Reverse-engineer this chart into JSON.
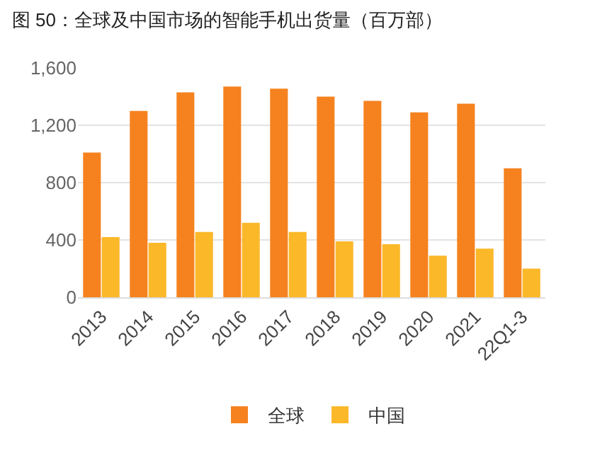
{
  "chart_data": {
    "type": "bar",
    "title": "图 50：全球及中国市场的智能手机出货量（百万部）",
    "categories": [
      "2013",
      "2014",
      "2015",
      "2016",
      "2017",
      "2018",
      "2019",
      "2020",
      "2021",
      "22Q1-3"
    ],
    "series": [
      {
        "name": "全球",
        "color": "#f5821f",
        "values": [
          1010,
          1300,
          1430,
          1470,
          1455,
          1400,
          1370,
          1290,
          1350,
          900
        ]
      },
      {
        "name": "中国",
        "color": "#fbb829",
        "values": [
          420,
          380,
          455,
          520,
          455,
          390,
          370,
          290,
          340,
          200
        ]
      }
    ],
    "ylim": [
      0,
      1600
    ],
    "yticks": [
      {
        "value": 0,
        "label": "0"
      },
      {
        "value": 400,
        "label": "400"
      },
      {
        "value": 800,
        "label": "800"
      },
      {
        "value": 1200,
        "label": "1,200"
      },
      {
        "value": 1600,
        "label": "1,600"
      }
    ],
    "grid": "y",
    "legend": "bottom"
  }
}
